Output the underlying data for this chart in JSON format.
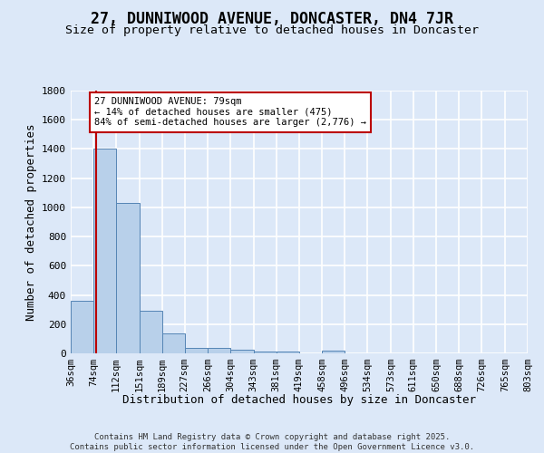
{
  "title": "27, DUNNIWOOD AVENUE, DONCASTER, DN4 7JR",
  "subtitle": "Size of property relative to detached houses in Doncaster",
  "xlabel": "Distribution of detached houses by size in Doncaster",
  "ylabel": "Number of detached properties",
  "bin_labels": [
    "36sqm",
    "74sqm",
    "112sqm",
    "151sqm",
    "189sqm",
    "227sqm",
    "266sqm",
    "304sqm",
    "343sqm",
    "381sqm",
    "419sqm",
    "458sqm",
    "496sqm",
    "534sqm",
    "573sqm",
    "611sqm",
    "650sqm",
    "688sqm",
    "726sqm",
    "765sqm",
    "803sqm"
  ],
  "bin_edges": [
    36,
    74,
    112,
    151,
    189,
    227,
    266,
    304,
    343,
    381,
    419,
    458,
    496,
    534,
    573,
    611,
    650,
    688,
    726,
    765,
    803
  ],
  "bar_heights": [
    360,
    1400,
    1030,
    290,
    135,
    40,
    35,
    25,
    15,
    10,
    0,
    20,
    0,
    0,
    0,
    0,
    0,
    0,
    0,
    0
  ],
  "bar_color": "#b8d0ea",
  "bar_edge_color": "#5585b5",
  "background_color": "#dce8f8",
  "grid_color": "#ffffff",
  "property_size": 79,
  "red_line_color": "#bb0000",
  "annotation_line1": "27 DUNNIWOOD AVENUE: 79sqm",
  "annotation_line2": "← 14% of detached houses are smaller (475)",
  "annotation_line3": "84% of semi-detached houses are larger (2,776) →",
  "annotation_box_facecolor": "#ffffff",
  "annotation_box_edgecolor": "#bb0000",
  "ylim_max": 1800,
  "yticks": [
    0,
    200,
    400,
    600,
    800,
    1000,
    1200,
    1400,
    1600,
    1800
  ],
  "footer_line1": "Contains HM Land Registry data © Crown copyright and database right 2025.",
  "footer_line2": "Contains public sector information licensed under the Open Government Licence v3.0."
}
